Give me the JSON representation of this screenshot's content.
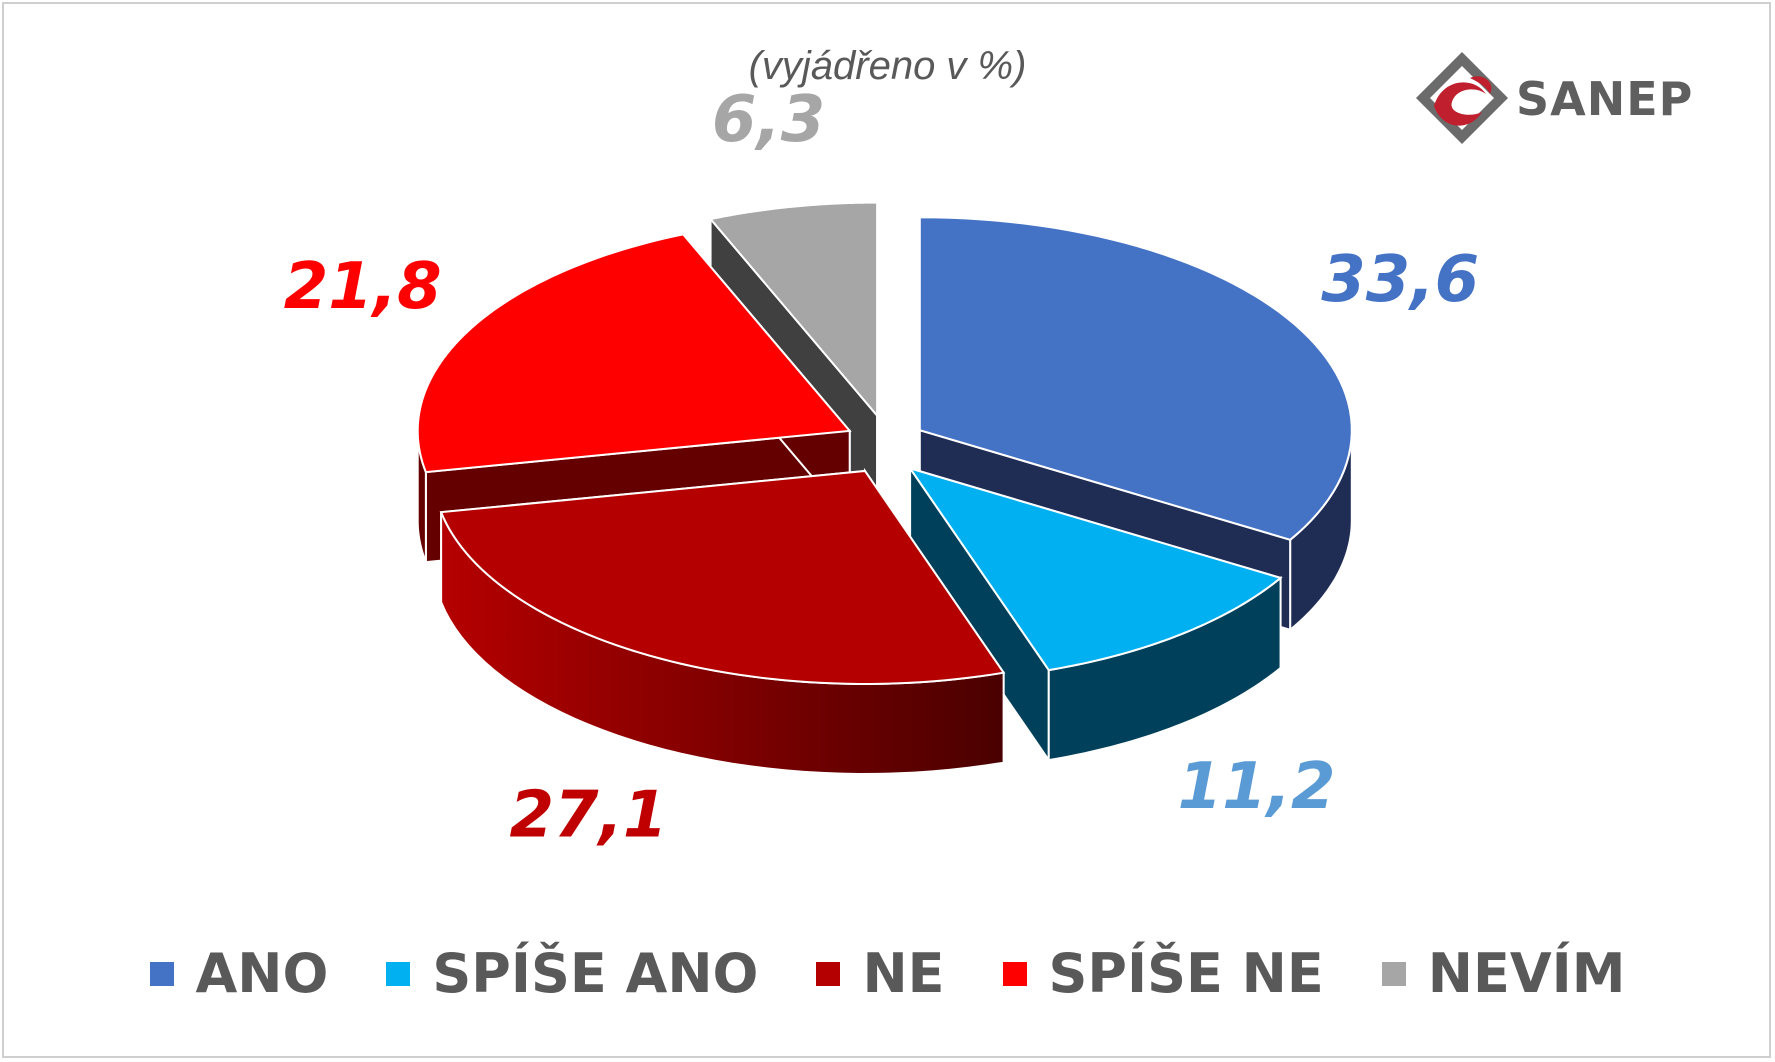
{
  "subtitle": "(vyjádřeno v %)",
  "logo": {
    "text": "SANEP",
    "icon": "sanep-diamond-logo",
    "colors": {
      "diamond": "#6b6b6b",
      "swoosh": "#c0202e"
    }
  },
  "chart_data": {
    "type": "pie",
    "style": "3d-exploded",
    "unit": "%",
    "categories": [
      "ANO",
      "SPÍŠE ANO",
      "NE",
      "SPÍŠE NE",
      "NEVÍM"
    ],
    "values": [
      33.6,
      11.2,
      27.1,
      21.8,
      6.3
    ],
    "value_labels": [
      "33,6",
      "11,2",
      "27,1",
      "21,8",
      "6,3"
    ],
    "colors": [
      "#4472c4",
      "#00b0f0",
      "#b50000",
      "#ff0000",
      "#a6a6a6"
    ],
    "label_colors": [
      "#4472c4",
      "#5b9bd5",
      "#c00000",
      "#ff0000",
      "#a6a6a6"
    ],
    "legend_position": "bottom"
  }
}
